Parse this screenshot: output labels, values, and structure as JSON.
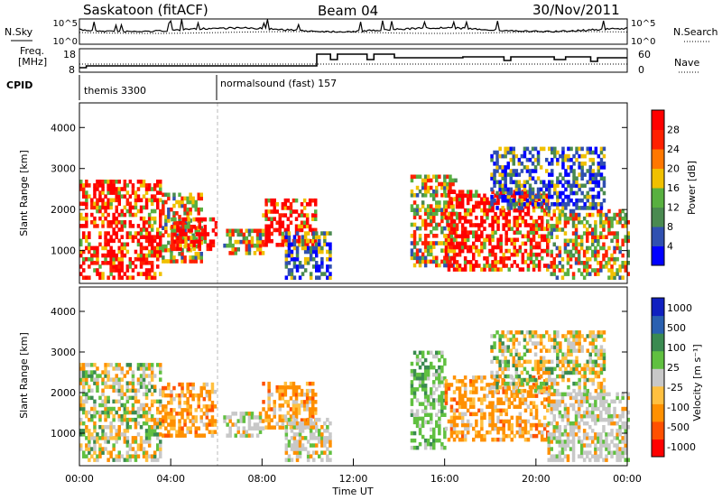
{
  "header": {
    "title": "Saskatoon (fitACF)",
    "beam": "Beam 04",
    "date": "30/Nov/2011"
  },
  "summary_panels": {
    "nsky_label": "N.Sky",
    "nsearch_label": "N.Search",
    "freq_label_line1": "Freq.",
    "freq_label_line2": "[MHz]",
    "nave_label": "Nave",
    "cpid_label": "CPID",
    "noise_ticks_left": [
      "10^5",
      "10^0"
    ],
    "noise_ticks_right": [
      "10^5",
      "10^0"
    ],
    "freq_ticks": [
      "18",
      "8"
    ],
    "nave_ticks": [
      "60",
      "0"
    ],
    "cpid_segments": [
      {
        "label": "themis 3300",
        "start_hour": 0
      },
      {
        "label": "normalsound (fast) 157",
        "start_hour": 6
      }
    ]
  },
  "colors": {
    "power_scale": [
      "#0000ff",
      "#3050b0",
      "#4a8a50",
      "#58b040",
      "#f0c000",
      "#ff7700",
      "#ff2000",
      "#ff0000"
    ],
    "velocity_scale": [
      "#ff0000",
      "#ff5000",
      "#ff9000",
      "#ffc040",
      "#c8c8c8",
      "#60c040",
      "#3a8a50",
      "#2a60b0",
      "#1020c0"
    ]
  },
  "chart_data": [
    {
      "type": "heatmap",
      "name": "power",
      "ylabel": "Slant Range [km]",
      "xlim": [
        0,
        24
      ],
      "ylim": [
        200,
        4600
      ],
      "y_ticks": [
        "1000",
        "2000",
        "3000",
        "4000"
      ],
      "colorbar_label": "Power [dB]",
      "colorbar_ticks": [
        "4",
        "8",
        "12",
        "16",
        "20",
        "24",
        "28"
      ],
      "colorbar_range": [
        0,
        30
      ],
      "regions": [
        {
          "x0": 0.0,
          "x1": 3.6,
          "y0": 300,
          "y1": 2700,
          "level": "high"
        },
        {
          "x0": 3.6,
          "x1": 5.4,
          "y0": 700,
          "y1": 2400,
          "level": "mixed"
        },
        {
          "x0": 4.0,
          "x1": 6.0,
          "y0": 1000,
          "y1": 1800,
          "level": "high"
        },
        {
          "x0": 6.3,
          "x1": 8.0,
          "y0": 900,
          "y1": 1500,
          "level": "mixed"
        },
        {
          "x0": 8.0,
          "x1": 10.3,
          "y0": 1100,
          "y1": 2200,
          "level": "high"
        },
        {
          "x0": 9.0,
          "x1": 11.0,
          "y0": 300,
          "y1": 1400,
          "level": "low"
        },
        {
          "x0": 14.5,
          "x1": 16.5,
          "y0": 600,
          "y1": 2800,
          "level": "mixed"
        },
        {
          "x0": 16.0,
          "x1": 20.5,
          "y0": 500,
          "y1": 2400,
          "level": "high"
        },
        {
          "x0": 20.5,
          "x1": 24.0,
          "y0": 300,
          "y1": 2000,
          "level": "mixed"
        },
        {
          "x0": 18.0,
          "x1": 23.0,
          "y0": 2000,
          "y1": 3500,
          "level": "low"
        }
      ]
    },
    {
      "type": "heatmap",
      "name": "velocity",
      "ylabel": "Slant Range [km]",
      "xlabel": "Time UT",
      "xlim": [
        0,
        24
      ],
      "ylim": [
        200,
        4600
      ],
      "x_ticks": [
        "00:00",
        "04:00",
        "08:00",
        "12:00",
        "16:00",
        "20:00",
        "00:00"
      ],
      "y_ticks": [
        "1000",
        "2000",
        "3000",
        "4000"
      ],
      "colorbar_label": "Velocity [m s⁻¹]",
      "colorbar_ticks": [
        "1000",
        "500",
        "100",
        "25",
        "-25",
        "-100",
        "-500",
        "-1000"
      ],
      "colorbar_range": [
        -1000,
        1000
      ],
      "regions": [
        {
          "x0": 0.0,
          "x1": 3.6,
          "y0": 300,
          "y1": 2700,
          "level": "mixed"
        },
        {
          "x0": 3.6,
          "x1": 6.0,
          "y0": 900,
          "y1": 2200,
          "level": "orange"
        },
        {
          "x0": 6.3,
          "x1": 8.0,
          "y0": 900,
          "y1": 1500,
          "level": "grey"
        },
        {
          "x0": 8.0,
          "x1": 10.3,
          "y0": 1100,
          "y1": 2200,
          "level": "orange"
        },
        {
          "x0": 9.0,
          "x1": 11.0,
          "y0": 300,
          "y1": 1300,
          "level": "grey"
        },
        {
          "x0": 14.5,
          "x1": 16.0,
          "y0": 600,
          "y1": 3000,
          "level": "green"
        },
        {
          "x0": 16.0,
          "x1": 20.5,
          "y0": 800,
          "y1": 2400,
          "level": "orange"
        },
        {
          "x0": 20.5,
          "x1": 24.0,
          "y0": 300,
          "y1": 2000,
          "level": "grey"
        },
        {
          "x0": 18.0,
          "x1": 23.0,
          "y0": 2000,
          "y1": 3500,
          "level": "mixed"
        }
      ]
    }
  ]
}
